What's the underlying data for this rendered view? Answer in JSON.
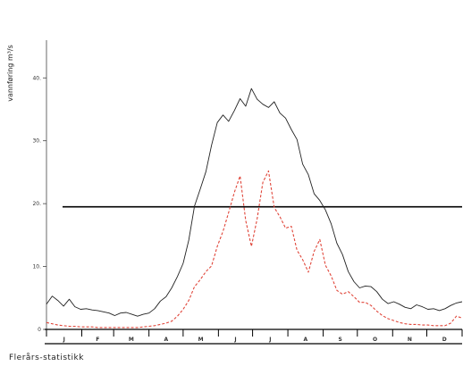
{
  "chart_data": {
    "type": "line",
    "ylabel": "vannføring  m³/s",
    "caption": "Flerårs-statistikk",
    "ylim": [
      0,
      46
    ],
    "y_ticks": [
      0,
      10,
      20,
      30,
      40
    ],
    "y_tick_labels": [
      "0",
      "10.",
      "20.",
      "30.",
      "40."
    ],
    "x_range": [
      0,
      365
    ],
    "month_boundaries": [
      0,
      31,
      59,
      90,
      120,
      151,
      181,
      212,
      243,
      273,
      304,
      334,
      365
    ],
    "months": [
      "J",
      "F",
      "M",
      "A",
      "M",
      "J",
      "J",
      "A",
      "S",
      "O",
      "N",
      "D"
    ],
    "reference_line": {
      "value": 19.5,
      "color": "#000000"
    },
    "series": [
      {
        "style": "solid",
        "color": "#222222",
        "x": [
          0,
          5,
          10,
          15,
          20,
          25,
          30,
          35,
          40,
          45,
          50,
          55,
          60,
          65,
          70,
          75,
          80,
          85,
          90,
          95,
          100,
          105,
          110,
          115,
          120,
          125,
          130,
          135,
          140,
          145,
          150,
          155,
          160,
          165,
          170,
          175,
          180,
          185,
          190,
          195,
          200,
          205,
          210,
          215,
          220,
          225,
          230,
          235,
          240,
          245,
          250,
          255,
          260,
          265,
          270,
          275,
          280,
          285,
          290,
          295,
          300,
          305,
          310,
          315,
          320,
          325,
          330,
          335,
          340,
          345,
          350,
          355,
          360,
          365
        ],
        "y": [
          4.0,
          5.3,
          4.6,
          3.7,
          4.8,
          3.6,
          3.2,
          3.3,
          3.1,
          3.0,
          2.8,
          2.6,
          2.2,
          2.6,
          2.7,
          2.4,
          2.1,
          2.4,
          2.6,
          3.3,
          4.5,
          5.2,
          6.6,
          8.4,
          10.5,
          14.2,
          19.6,
          22.3,
          25.1,
          29.3,
          32.9,
          34.1,
          33.1,
          34.8,
          36.7,
          35.5,
          38.3,
          36.6,
          35.8,
          35.3,
          36.2,
          34.4,
          33.6,
          31.8,
          30.2,
          26.3,
          24.6,
          21.6,
          20.5,
          19.0,
          16.8,
          13.7,
          11.9,
          9.2,
          7.6,
          6.6,
          6.9,
          6.8,
          6.0,
          4.8,
          4.1,
          4.4,
          4.0,
          3.5,
          3.3,
          3.9,
          3.6,
          3.2,
          3.3,
          3.0,
          3.3,
          3.8,
          4.2,
          4.4
        ]
      },
      {
        "style": "dashed",
        "color": "#e0463a",
        "x": [
          0,
          5,
          10,
          15,
          20,
          25,
          30,
          35,
          40,
          45,
          50,
          55,
          60,
          65,
          70,
          75,
          80,
          85,
          90,
          95,
          100,
          105,
          110,
          115,
          120,
          125,
          130,
          135,
          140,
          145,
          150,
          155,
          160,
          165,
          170,
          175,
          180,
          185,
          190,
          195,
          200,
          205,
          210,
          215,
          220,
          225,
          230,
          235,
          240,
          245,
          250,
          255,
          260,
          265,
          270,
          275,
          280,
          285,
          290,
          295,
          300,
          305,
          310,
          315,
          320,
          325,
          330,
          335,
          340,
          345,
          350,
          355,
          360,
          365
        ],
        "y": [
          1.1,
          0.9,
          0.7,
          0.6,
          0.5,
          0.5,
          0.4,
          0.4,
          0.4,
          0.3,
          0.3,
          0.3,
          0.3,
          0.3,
          0.3,
          0.3,
          0.3,
          0.4,
          0.5,
          0.6,
          0.8,
          1.0,
          1.3,
          2.1,
          3.2,
          4.6,
          6.8,
          7.9,
          9.2,
          10.1,
          13.2,
          15.6,
          18.6,
          21.8,
          24.4,
          17.3,
          13.2,
          17.6,
          23.4,
          25.2,
          19.4,
          17.9,
          16.1,
          16.4,
          12.6,
          11.1,
          9.1,
          12.4,
          14.3,
          10.2,
          8.5,
          6.2,
          5.6,
          6.0,
          5.2,
          4.3,
          4.3,
          3.8,
          2.9,
          2.2,
          1.7,
          1.4,
          1.1,
          0.9,
          0.8,
          0.8,
          0.7,
          0.7,
          0.6,
          0.6,
          0.6,
          1.0,
          2.1,
          1.8
        ]
      }
    ]
  }
}
